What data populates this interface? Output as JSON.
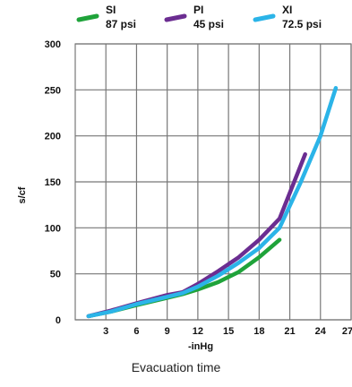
{
  "chart_data": {
    "type": "line",
    "xlabel": "-inHg",
    "ylabel": "s/cf",
    "xlim": [
      0,
      27
    ],
    "ylim": [
      0,
      300
    ],
    "x_ticks": [
      3,
      6,
      9,
      12,
      15,
      18,
      21,
      24,
      27
    ],
    "x_tick_labels": [
      "3",
      "6",
      "9",
      "12",
      "15",
      "18",
      "21",
      "24",
      "27"
    ],
    "y_ticks": [
      0,
      50,
      100,
      150,
      200,
      250,
      300
    ],
    "y_tick_labels": [
      "0",
      "50",
      "100",
      "150",
      "200",
      "250",
      "300"
    ],
    "grid": true,
    "legend_position": "top",
    "series": [
      {
        "name": "SI",
        "subtitle": "87 psi",
        "color": "#1fa33a",
        "points": [
          [
            1.3,
            4
          ],
          [
            3.5,
            9
          ],
          [
            6,
            16
          ],
          [
            9,
            24
          ],
          [
            10.5,
            28
          ],
          [
            12,
            33
          ],
          [
            14,
            41
          ],
          [
            16,
            52
          ],
          [
            18,
            68
          ],
          [
            20,
            87
          ]
        ]
      },
      {
        "name": "PI",
        "subtitle": "45 psi",
        "color": "#6b2d91",
        "points": [
          [
            1.3,
            4
          ],
          [
            3.5,
            10
          ],
          [
            6,
            18
          ],
          [
            9,
            27
          ],
          [
            10.5,
            30
          ],
          [
            12,
            39
          ],
          [
            14,
            53
          ],
          [
            16,
            68
          ],
          [
            18,
            87
          ],
          [
            20,
            110
          ],
          [
            22.5,
            180
          ]
        ]
      },
      {
        "name": "XI",
        "subtitle": "72.5 psi",
        "color": "#2bb4e8",
        "points": [
          [
            1.3,
            4
          ],
          [
            3.5,
            9
          ],
          [
            6,
            17
          ],
          [
            9,
            25
          ],
          [
            10.5,
            29
          ],
          [
            12,
            36
          ],
          [
            14,
            48
          ],
          [
            16,
            62
          ],
          [
            18,
            78
          ],
          [
            20,
            100
          ],
          [
            22,
            148
          ],
          [
            24,
            200
          ],
          [
            25.5,
            252
          ]
        ]
      }
    ]
  },
  "caption": "Evacuation time"
}
